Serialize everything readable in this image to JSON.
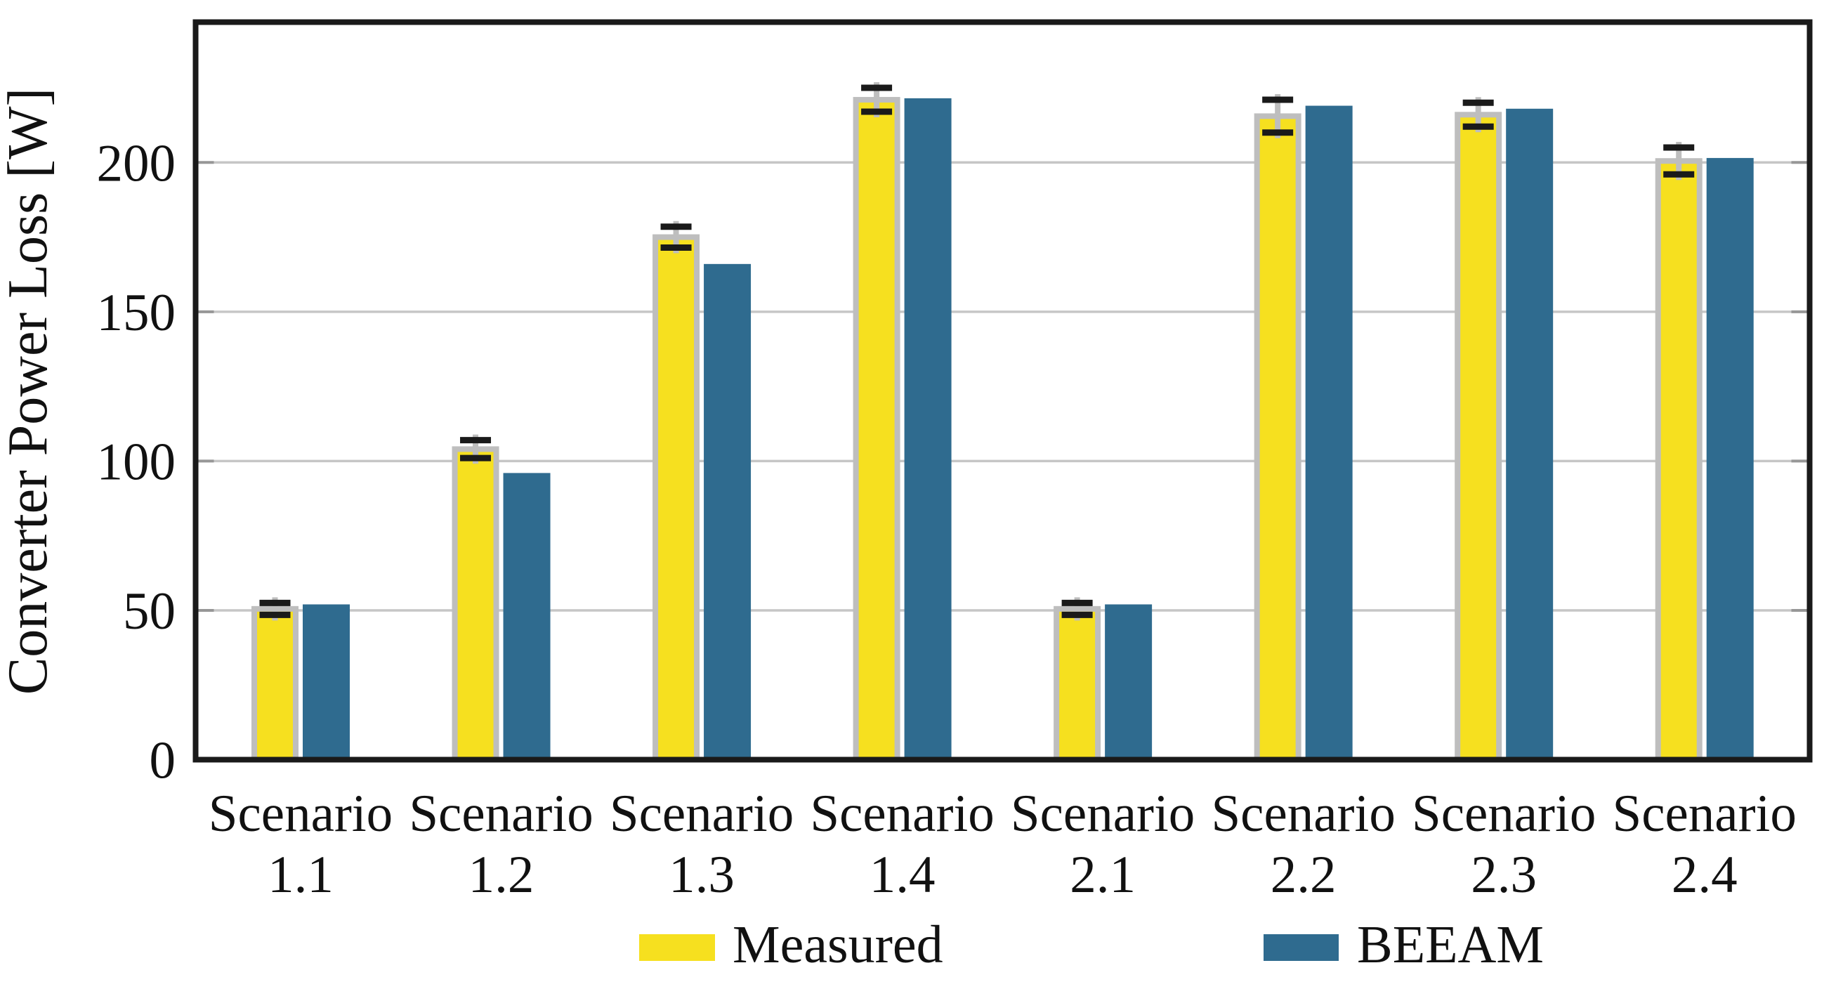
{
  "chart_data": {
    "type": "bar",
    "title": "",
    "ylabel": "Converter Power Loss [W]",
    "xlabel": "",
    "ylim": [
      0,
      247
    ],
    "yticks": [
      0,
      50,
      100,
      150,
      200
    ],
    "grid": "horizontal",
    "gridline_color": "#C6C6C6",
    "tick_mark_color": "#979797",
    "axis_color": "#1A1A1A",
    "legend_position": "below axis, horizontal",
    "categories": [
      "Scenario 1.1",
      "Scenario 1.2",
      "Scenario 1.3",
      "Scenario 1.4",
      "Scenario 2.1",
      "Scenario 2.2",
      "Scenario 2.3",
      "Scenario 2.4"
    ],
    "category_label_lines": [
      [
        "Scenario",
        "1.1"
      ],
      [
        "Scenario",
        "1.2"
      ],
      [
        "Scenario",
        "1.3"
      ],
      [
        "Scenario",
        "1.4"
      ],
      [
        "Scenario",
        "2.1"
      ],
      [
        "Scenario",
        "2.2"
      ],
      [
        "Scenario",
        "2.3"
      ],
      [
        "Scenario",
        "2.4"
      ]
    ],
    "series": [
      {
        "name": "Measured",
        "color": "#F6E01F",
        "edge_color": "#BEBEBE",
        "values": [
          50.5,
          104,
          175,
          221,
          50.5,
          215.5,
          216,
          200.5
        ],
        "errors": [
          2,
          3,
          3.5,
          4,
          2,
          5.5,
          4,
          4.5
        ],
        "error_cap_color": "#1A1A1A",
        "error_line_color": "#BEBEBE"
      },
      {
        "name": "BEEAM",
        "color": "#2F6B8F",
        "values": [
          52,
          96,
          166,
          221.5,
          52,
          219,
          218,
          201.5
        ]
      }
    ]
  }
}
